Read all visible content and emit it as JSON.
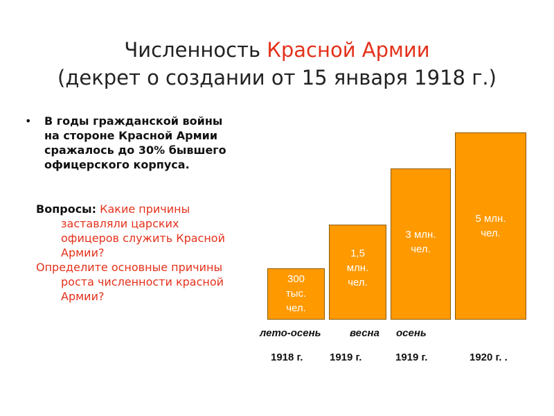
{
  "title": {
    "part1": "Численность ",
    "part2": "Красной Армии",
    "line2": "(декрет  о создании от 15 января 1918 г.)",
    "accent_color": "#e4311b"
  },
  "bullet": {
    "symbol": "•",
    "lines": [
      "В годы гражданской войны",
      "на стороне Красной Армии",
      "сражалось до 30% бывшего",
      "офицерского корпуса."
    ]
  },
  "questions": {
    "label": "Вопросы:",
    "q1_first": " Какие причины",
    "q1_rest": [
      "заставляли  царских",
      "офицеров служить Красной",
      "Армии?"
    ],
    "q2_first": "Определите основные причины",
    "q2_rest": [
      "роста численности красной",
      "Армии?"
    ]
  },
  "chart_data": {
    "type": "bar",
    "bar_color": "#ff9900",
    "categories": [
      "лето-осень 1918 г.",
      "весна 1919 г.",
      "осень 1919 г.",
      "1920 г."
    ],
    "values_million": [
      0.3,
      1.5,
      3,
      5
    ],
    "bar_labels": [
      [
        "300",
        "тыс.",
        "чел."
      ],
      [
        "1,5",
        "млн.",
        "чел."
      ],
      [
        "3 млн.",
        "чел."
      ],
      [
        "5 млн.",
        "чел."
      ]
    ],
    "season_labels": [
      "лето-осень",
      "весна",
      "осень"
    ],
    "year_labels": [
      "1918 г.",
      "1919 г.",
      "1919 г.",
      "1920 г. ."
    ]
  }
}
